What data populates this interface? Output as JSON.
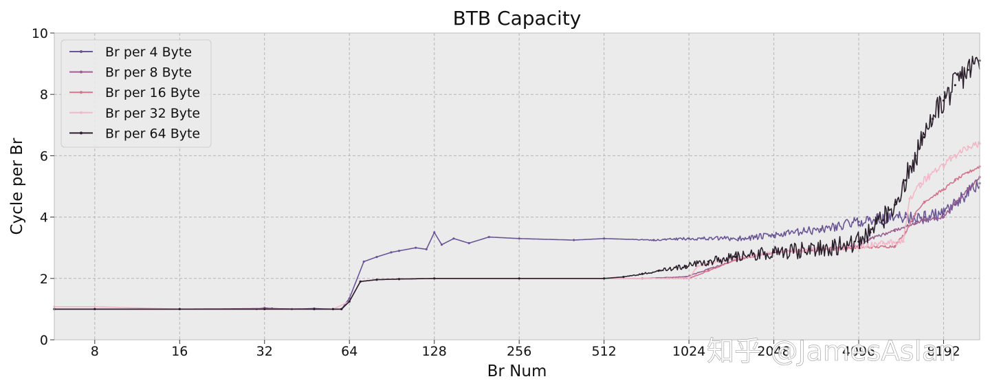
{
  "chart_data": {
    "type": "line",
    "title": "BTB Capacity",
    "xlabel": "Br Num",
    "ylabel": "Cycle per Br",
    "x_scale": "log2",
    "xlim": [
      5.75,
      11000
    ],
    "ylim": [
      0,
      10
    ],
    "x_ticks": [
      8,
      16,
      32,
      64,
      128,
      256,
      512,
      1024,
      2048,
      4096,
      8192
    ],
    "x_tick_labels": [
      "8",
      "16",
      "32",
      "64",
      "128",
      "256",
      "512",
      "1024",
      "2048",
      "4096",
      "8192"
    ],
    "y_ticks": [
      0,
      2,
      4,
      6,
      8,
      10
    ],
    "y_tick_labels": [
      "0",
      "2",
      "4",
      "6",
      "8",
      "10"
    ],
    "grid": true,
    "legend_position": "top-left",
    "series": [
      {
        "name": "Br per 4 Byte",
        "color": "#6a5594",
        "noise": 0.22,
        "x": [
          5.75,
          8,
          16,
          30,
          32,
          34,
          40,
          48,
          56,
          60,
          64,
          72,
          80,
          90,
          96,
          110,
          120,
          128,
          136,
          150,
          170,
          200,
          256,
          400,
          512,
          768,
          1024,
          1536,
          2048,
          3000,
          4096,
          5000,
          6000,
          7000,
          8192,
          9000,
          10000,
          11000
        ],
        "y": [
          1.0,
          1.0,
          1.0,
          1.0,
          1.04,
          1.02,
          1.0,
          1.02,
          1.0,
          1.0,
          1.35,
          2.55,
          2.7,
          2.85,
          2.9,
          3.0,
          2.95,
          3.5,
          3.1,
          3.3,
          3.15,
          3.35,
          3.3,
          3.25,
          3.3,
          3.25,
          3.3,
          3.3,
          3.4,
          3.6,
          3.85,
          3.95,
          4.0,
          4.0,
          4.1,
          4.4,
          4.8,
          5.1
        ]
      },
      {
        "name": "Br per 8 Byte",
        "color": "#9c5d90",
        "noise": 0.06,
        "x": [
          5.75,
          8,
          16,
          32,
          48,
          56,
          60,
          64,
          70,
          80,
          96,
          128,
          256,
          512,
          700,
          1000,
          1200,
          1500,
          2048,
          3000,
          4096,
          4500,
          5500,
          6500,
          7000,
          8192,
          9000,
          10000,
          11000
        ],
        "y": [
          1.0,
          1.0,
          1.0,
          1.02,
          1.0,
          1.0,
          1.0,
          1.25,
          1.9,
          1.96,
          1.98,
          2.0,
          2.0,
          2.0,
          2.0,
          2.05,
          2.3,
          2.6,
          2.85,
          2.95,
          3.05,
          3.3,
          3.55,
          3.8,
          3.9,
          4.0,
          4.45,
          4.9,
          5.3
        ]
      },
      {
        "name": "Br per 16 Byte",
        "color": "#d2748b",
        "noise": 0.05,
        "x": [
          5.75,
          8,
          16,
          32,
          48,
          56,
          60,
          64,
          70,
          80,
          96,
          128,
          256,
          512,
          1024,
          1200,
          1500,
          2048,
          3000,
          4096,
          5500,
          6000,
          6500,
          7000,
          8192,
          9000,
          10000,
          11000
        ],
        "y": [
          1.0,
          1.0,
          1.0,
          1.0,
          1.0,
          1.0,
          1.0,
          1.25,
          1.9,
          1.96,
          1.98,
          2.0,
          2.0,
          2.0,
          2.0,
          2.25,
          2.6,
          2.85,
          2.95,
          3.0,
          3.05,
          3.5,
          4.1,
          4.5,
          4.9,
          5.2,
          5.45,
          5.65
        ]
      },
      {
        "name": "Br per 32 Byte",
        "color": "#f1b9c8",
        "noise": 0.12,
        "x": [
          5.75,
          8,
          16,
          32,
          48,
          56,
          64,
          70,
          80,
          96,
          128,
          256,
          512,
          1024,
          1100,
          1500,
          2048,
          3000,
          4096,
          5000,
          5900,
          6200,
          6800,
          7200,
          8192,
          9000,
          10000,
          11000
        ],
        "y": [
          1.08,
          1.08,
          1.0,
          1.0,
          1.0,
          1.0,
          1.25,
          1.9,
          1.96,
          1.98,
          2.0,
          2.0,
          2.0,
          2.0,
          2.4,
          2.65,
          2.85,
          2.95,
          3.05,
          3.15,
          3.2,
          4.6,
          5.1,
          5.3,
          5.7,
          6.0,
          6.3,
          6.4
        ]
      },
      {
        "name": "Br per 64 Byte",
        "color": "#2a1f2b",
        "noise": 0.45,
        "x": [
          5.75,
          8,
          16,
          32,
          48,
          56,
          60,
          64,
          70,
          80,
          96,
          128,
          256,
          512,
          600,
          700,
          800,
          1000,
          1200,
          1500,
          2048,
          3000,
          4096,
          4500,
          5000,
          5500,
          6000,
          6500,
          7000,
          7500,
          8192,
          9000,
          10000,
          11000
        ],
        "y": [
          1.0,
          1.0,
          1.0,
          1.0,
          1.0,
          1.0,
          1.0,
          1.25,
          1.9,
          1.96,
          1.98,
          2.0,
          2.0,
          2.0,
          2.05,
          2.15,
          2.25,
          2.4,
          2.55,
          2.7,
          2.85,
          2.95,
          3.2,
          3.5,
          3.9,
          4.4,
          5.2,
          6.0,
          6.6,
          7.2,
          7.8,
          8.3,
          8.8,
          9.1
        ]
      }
    ]
  },
  "watermark": "知乎 @JamesAslan",
  "colors": {
    "background": "#ebebeb",
    "grid": "#b5b5b5",
    "frame": "#bcbcbc"
  }
}
